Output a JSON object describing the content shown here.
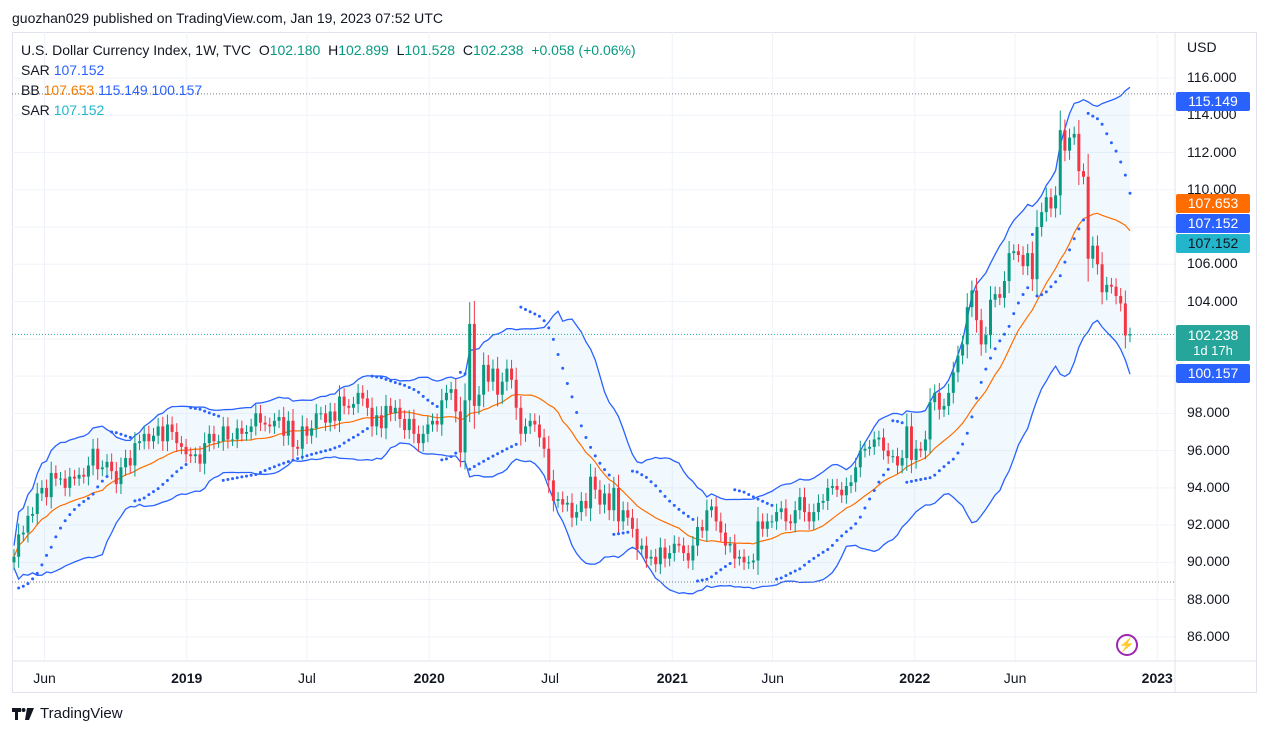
{
  "published": "guozhan029 published on TradingView.com, Jan 19, 2023 07:52 UTC",
  "legend": {
    "symbol": "U.S. Dollar Currency Index, 1W, TVC",
    "o_label": "O",
    "o": "102.180",
    "h_label": "H",
    "h": "102.899",
    "l_label": "L",
    "l": "101.528",
    "c_label": "C",
    "c": "102.238",
    "change": "+0.058 (+0.06%)",
    "sar1_label": "SAR",
    "sar1": "107.152",
    "bb_label": "BB",
    "bb_basis": "107.653",
    "bb_upper": "115.149",
    "bb_lower": "100.157",
    "sar2_label": "SAR",
    "sar2": "107.152"
  },
  "price_axis": {
    "currency": "USD",
    "ticks": [
      "116.000",
      "114.000",
      "112.000",
      "110.000",
      "106.000",
      "104.000",
      "98.000",
      "96.000",
      "94.000",
      "92.000",
      "90.000",
      "88.000",
      "86.000"
    ],
    "labels": {
      "bb_upper": "115.149",
      "bb_basis": "107.653",
      "sar1": "107.152",
      "sar2": "107.152",
      "last": "102.238",
      "countdown": "1d 17h",
      "bb_lower": "100.157"
    }
  },
  "footer": {
    "brand": "TradingView"
  },
  "icons": {
    "lightning": "lightning-icon",
    "logo": "tradingview-logo"
  },
  "colors": {
    "up": "#089981",
    "down": "#f23645",
    "bb": "#2962ff",
    "basis": "#ff6d00",
    "sar": "#2962ff",
    "sar2": "#22b5cc"
  },
  "chart_data": {
    "type": "candlestick",
    "interval": "1W",
    "ylim": [
      85,
      117
    ],
    "grid": true,
    "indicators": [
      "Bollinger Bands (20, 2)",
      "Parabolic SAR"
    ],
    "start_week": "2018-04-16",
    "xticks": [
      {
        "label": "Jun",
        "date": "2018-06-01",
        "year": false
      },
      {
        "label": "2019",
        "date": "2019-01-01",
        "year": true
      },
      {
        "label": "Jul",
        "date": "2019-07-01",
        "year": false
      },
      {
        "label": "2020",
        "date": "2020-01-01",
        "year": true
      },
      {
        "label": "Jul",
        "date": "2020-07-01",
        "year": false
      },
      {
        "label": "2021",
        "date": "2021-01-01",
        "year": true
      },
      {
        "label": "Jun",
        "date": "2021-06-01",
        "year": false
      },
      {
        "label": "2022",
        "date": "2022-01-01",
        "year": true
      },
      {
        "label": "Jun",
        "date": "2022-06-01",
        "year": false
      },
      {
        "label": "2023",
        "date": "2023-01-01",
        "year": true
      }
    ],
    "yticks": [
      86,
      88,
      90,
      92,
      94,
      96,
      98,
      100,
      102,
      104,
      106,
      108,
      110,
      112,
      114,
      116
    ],
    "horizontal_lines": [
      115.149,
      102.238,
      88.95
    ],
    "close": [
      90.3,
      91.5,
      91.6,
      92.5,
      92.6,
      93.7,
      94.0,
      93.5,
      94.8,
      94.5,
      94.5,
      94.0,
      94.6,
      94.5,
      94.7,
      94.6,
      95.2,
      96.1,
      95.0,
      95.1,
      95.4,
      94.9,
      94.2,
      95.1,
      95.6,
      95.2,
      96.4,
      96.5,
      96.9,
      96.5,
      96.8,
      97.3,
      96.5,
      97.4,
      97.0,
      96.4,
      96.2,
      95.8,
      95.7,
      95.8,
      95.3,
      96.4,
      96.9,
      96.5,
      96.5,
      97.3,
      96.6,
      96.6,
      97.2,
      96.9,
      97.0,
      97.3,
      98.0,
      97.5,
      97.4,
      97.3,
      97.6,
      97.8,
      96.8,
      97.6,
      96.2,
      96.1,
      97.3,
      96.8,
      97.2,
      98.0,
      98.0,
      97.5,
      98.1,
      97.6,
      98.9,
      98.4,
      98.3,
      98.5,
      99.1,
      98.8,
      98.3,
      97.3,
      97.9,
      97.2,
      98.4,
      98.0,
      98.3,
      97.7,
      97.1,
      97.7,
      96.9,
      96.4,
      96.9,
      97.4,
      97.6,
      97.4,
      98.7,
      99.1,
      99.3,
      98.1,
      95.9,
      98.7,
      102.8,
      98.4,
      99.0,
      100.6,
      99.7,
      100.4,
      99.0,
      99.7,
      100.4,
      99.8,
      98.3,
      96.9,
      97.3,
      97.6,
      97.4,
      96.7,
      96.1,
      94.4,
      93.3,
      93.4,
      93.1,
      93.2,
      92.4,
      92.7,
      93.3,
      92.9,
      94.6,
      93.9,
      93.1,
      93.7,
      92.8,
      94.0,
      92.2,
      92.8,
      92.4,
      91.8,
      90.7,
      90.9,
      90.2,
      90.3,
      89.9,
      90.8,
      90.2,
      90.5,
      91.0,
      90.9,
      90.5,
      90.1,
      90.9,
      91.9,
      91.7,
      92.8,
      93.0,
      92.2,
      91.6,
      90.9,
      91.0,
      90.2,
      90.3,
      90.0,
      90.0,
      90.1,
      92.2,
      91.8,
      92.2,
      92.2,
      92.7,
      92.9,
      92.2,
      92.1,
      92.8,
      93.5,
      92.7,
      92.2,
      92.7,
      93.2,
      93.3,
      94.0,
      94.1,
      93.9,
      93.6,
      94.1,
      94.3,
      95.1,
      96.0,
      96.1,
      96.2,
      96.6,
      96.7,
      96.0,
      95.7,
      95.7,
      95.2,
      95.6,
      97.3,
      95.5,
      96.1,
      96.0,
      96.6,
      98.6,
      99.1,
      98.2,
      98.4,
      99.1,
      100.2,
      101.1,
      101.7,
      103.7,
      104.6,
      103.0,
      101.7,
      102.2,
      104.1,
      104.4,
      104.2,
      105.1,
      106.6,
      106.7,
      106.5,
      105.9,
      106.6,
      105.2,
      108.0,
      108.8,
      109.6,
      109.0,
      109.7,
      113.2,
      112.1,
      112.8,
      113.0,
      111.0,
      110.7,
      106.3,
      107.0,
      106.0,
      104.5,
      104.9,
      104.8,
      104.3,
      103.9,
      102.18,
      102.238
    ]
  }
}
